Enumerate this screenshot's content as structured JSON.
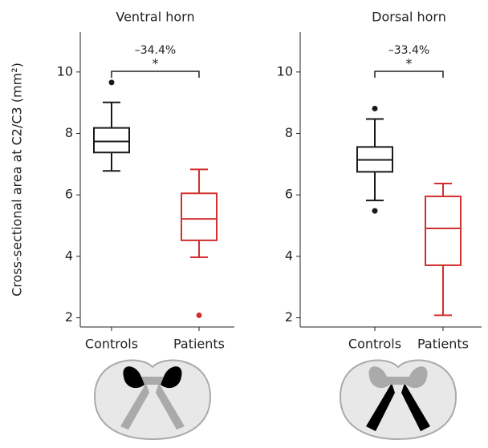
{
  "chart_data": [
    {
      "type": "box",
      "title": "Ventral horn",
      "y_label": "Cross-sectional area at C2/C3 (mm²)",
      "categories": [
        "Controls",
        "Patients"
      ],
      "colors": [
        "#1a1a1a",
        "#d32f2f"
      ],
      "boxes": [
        {
          "whislo": 6.78,
          "q1": 7.38,
          "med": 7.74,
          "q3": 8.18,
          "whishi": 9.01,
          "fliers": [
            9.66
          ]
        },
        {
          "whislo": 3.97,
          "q1": 4.52,
          "med": 5.22,
          "q3": 6.05,
          "whishi": 6.83,
          "fliers": [
            2.08
          ]
        }
      ],
      "ylim": [
        1.7,
        11.3
      ],
      "yticks": [
        2,
        4,
        6,
        8,
        10
      ],
      "annotation": {
        "text": "–34.4%",
        "significance": "*"
      }
    },
    {
      "type": "box",
      "title": "Dorsal horn",
      "categories": [
        "Controls",
        "Patients"
      ],
      "colors": [
        "#1a1a1a",
        "#d32f2f"
      ],
      "boxes": [
        {
          "whislo": 5.82,
          "q1": 6.75,
          "med": 7.14,
          "q3": 7.56,
          "whishi": 8.47,
          "fliers": [
            8.81,
            5.48
          ]
        },
        {
          "whislo": 2.08,
          "q1": 3.71,
          "med": 4.91,
          "q3": 5.95,
          "whishi": 6.37,
          "fliers": []
        }
      ],
      "ylim": [
        1.7,
        11.3
      ],
      "yticks": [
        2,
        4,
        6,
        8,
        10
      ],
      "annotation": {
        "text": "–33.4%",
        "significance": "*"
      }
    }
  ]
}
